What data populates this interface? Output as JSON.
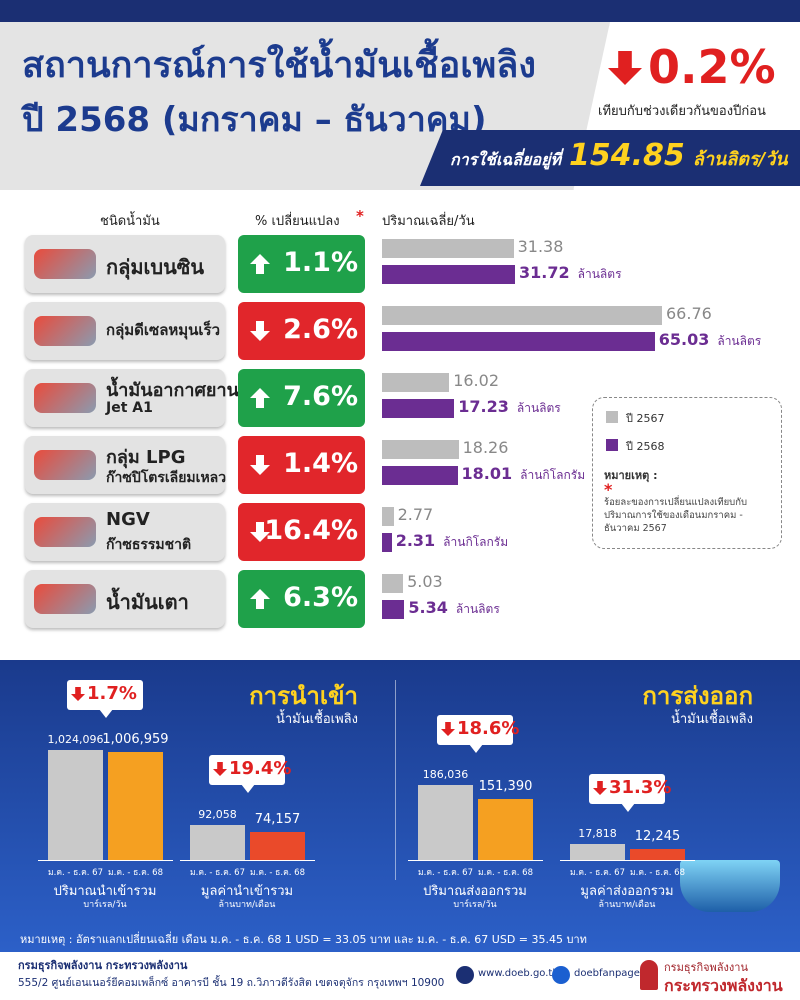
{
  "header": {
    "title": "สถานการณ์การใช้น้ำมันเชื้อเพลิง",
    "subtitle": "ปี 2568 (มกราคม – ธันวาคม)",
    "change": "0.2%",
    "change_direction": "down",
    "change_note": "เทียบกับช่วงเดียวกันของปีก่อน",
    "average_label": "การใช้เฉลี่ยอยู่ที่",
    "average_value": "154.85",
    "average_unit": "ล้านลิตร/วัน"
  },
  "fuel_table": {
    "columns": [
      "ชนิดน้ำมัน",
      "% เปลี่ยนแปลง",
      "ปริมาณเฉลี่ย/วัน"
    ],
    "asterisk": "*",
    "series": [
      {
        "name": "ปี 2567",
        "color": "#bdbdbd"
      },
      {
        "name": "ปี 2568",
        "color": "#6b2d92"
      }
    ],
    "rows": [
      {
        "name": "กลุ่มเบนซิน",
        "change": "1.1%",
        "direction": "up",
        "values": [
          31.38,
          31.72
        ],
        "unit": "ล้านลิตร"
      },
      {
        "name": "กลุ่มดีเซลหมุนเร็ว",
        "change": "2.6%",
        "direction": "down",
        "values": [
          66.76,
          65.03
        ],
        "unit": "ล้านลิตร"
      },
      {
        "name": "น้ำมันอากาศยาน",
        "subname": "Jet A1",
        "change": "7.6%",
        "direction": "up",
        "values": [
          16.02,
          17.23
        ],
        "unit": "ล้านลิตร"
      },
      {
        "name": "กลุ่ม LPG",
        "subname": "ก๊าซปิโตรเลียมเหลว",
        "change": "1.4%",
        "direction": "down",
        "values": [
          18.26,
          18.01
        ],
        "unit": "ล้านกิโลกรัม"
      },
      {
        "name": "NGV",
        "subname": "ก๊าซธรรมชาติ",
        "change": "16.4%",
        "direction": "down",
        "values": [
          2.77,
          2.31
        ],
        "unit": "ล้านกิโลกรัม"
      },
      {
        "name": "น้ำมันเตา",
        "change": "6.3%",
        "direction": "up",
        "values": [
          5.03,
          5.34
        ],
        "unit": "ล้านลิตร"
      }
    ],
    "note": {
      "title": "หมายเหตุ :",
      "asterisk": "*",
      "text": "ร้อยละของการเปลี่ยนแปลงเทียบกับปริมาณการใช้ของเดือนมกราคม - ธันวาคม 2567"
    }
  },
  "trade": [
    {
      "title": "การนำเข้า",
      "subtitle": "น้ำมันเชื้อเพลิง",
      "groups": [
        {
          "label": "ปริมาณนำเข้ารวม",
          "unit": "บาร์เรล/วัน",
          "change": "1.7%",
          "direction": "down",
          "categories": [
            "ม.ค. - ธ.ค. 67",
            "ม.ค. - ธ.ค. 68"
          ],
          "colors": [
            "#c9c9c9",
            "#f5a021"
          ],
          "values": [
            1024096,
            1006959
          ],
          "value_labels": [
            "1,024,096",
            "1,006,959"
          ]
        },
        {
          "label": "มูลค่านำเข้ารวม",
          "unit": "ล้านบาท/เดือน",
          "change": "19.4%",
          "direction": "down",
          "categories": [
            "ม.ค. - ธ.ค. 67",
            "ม.ค. - ธ.ค. 68"
          ],
          "colors": [
            "#c9c9c9",
            "#ea4a2a"
          ],
          "values": [
            92058,
            74157
          ],
          "value_labels": [
            "92,058",
            "74,157"
          ]
        }
      ]
    },
    {
      "title": "การส่งออก",
      "subtitle": "น้ำมันเชื้อเพลิง",
      "groups": [
        {
          "label": "ปริมาณส่งออกรวม",
          "unit": "บาร์เรล/วัน",
          "change": "18.6%",
          "direction": "down",
          "categories": [
            "ม.ค. - ธ.ค. 67",
            "ม.ค. - ธ.ค. 68"
          ],
          "colors": [
            "#c9c9c9",
            "#f5a021"
          ],
          "values": [
            186036,
            151390
          ],
          "value_labels": [
            "186,036",
            "151,390"
          ]
        },
        {
          "label": "มูลค่าส่งออกรวม",
          "unit": "ล้านบาท/เดือน",
          "change": "31.3%",
          "direction": "down",
          "categories": [
            "ม.ค. - ธ.ค. 67",
            "ม.ค. - ธ.ค. 68"
          ],
          "colors": [
            "#c9c9c9",
            "#ea4a2a"
          ],
          "values": [
            17818,
            12245
          ],
          "value_labels": [
            "17,818",
            "12,245"
          ]
        }
      ]
    }
  ],
  "footnote": "หมายเหตุ : อัตราแลกเปลี่ยนเฉลี่ย เดือน ม.ค. - ธ.ค. 68 1 USD = 33.05 บาท และ ม.ค. - ธ.ค. 67 USD = 35.45 บาท",
  "footer": {
    "org": "กรมธุรกิจพลังงาน กระทรวงพลังงาน",
    "address": "555/2 ศูนย์เอนเนอร์ยีคอมเพล็กซ์ อาคารบี ชั้น 19 ถ.วิภาวดีรังสิต เขตจตุจักร กรุงเทพฯ 10900",
    "website": "www.doeb.go.th",
    "facebook": "doebfanpage",
    "logo_line1": "กรมธุรกิจพลังงาน",
    "logo_line2": "กระทรวงพลังงาน"
  }
}
